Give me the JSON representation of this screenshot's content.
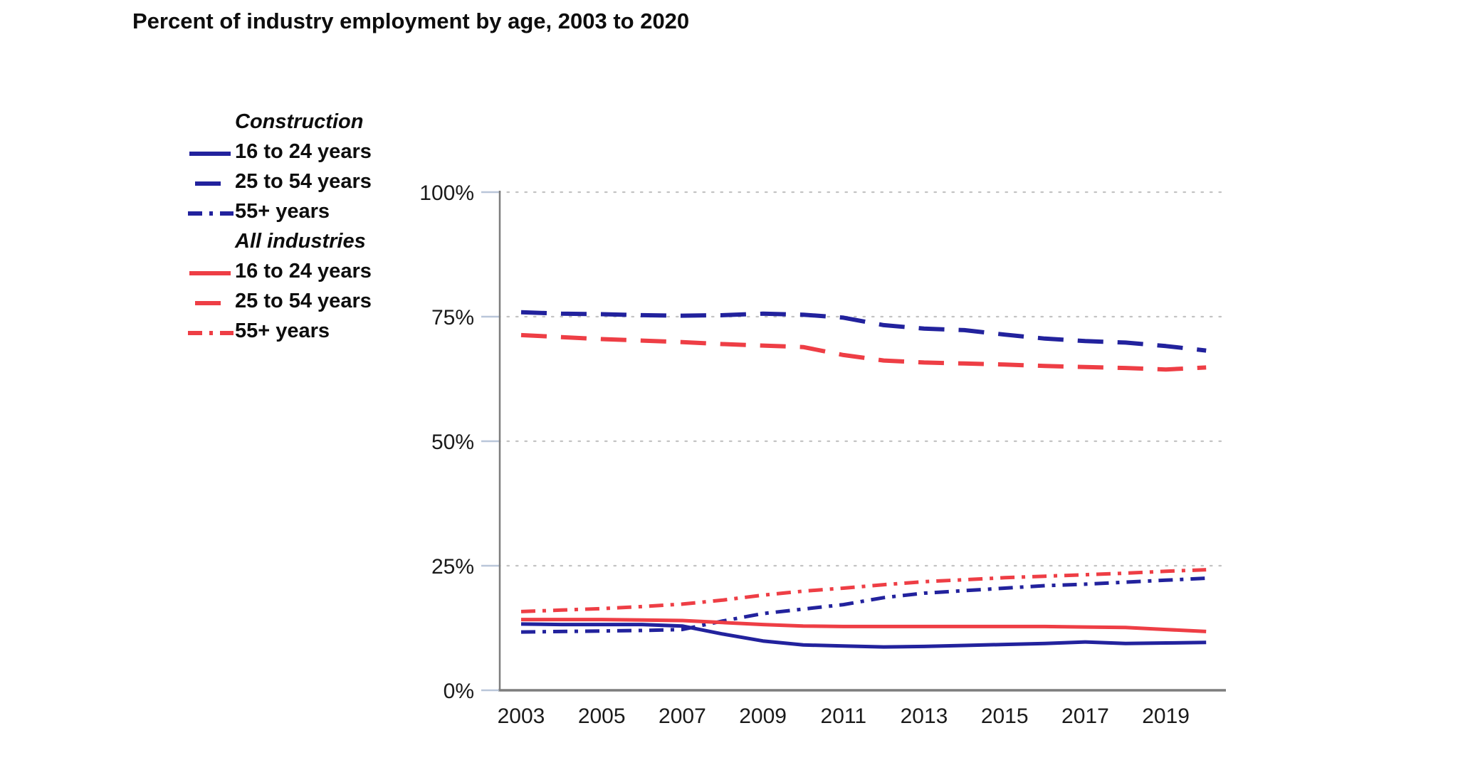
{
  "title": "Percent of industry employment by age, 2003 to 2020",
  "colors": {
    "construction": "#22229d",
    "all_industries": "#ee3e45",
    "grid": "#c3c3c3",
    "axis": "#7d7d7d",
    "tick": "#b9c6d9",
    "text": "#0d0d0d"
  },
  "legend": [
    {
      "type": "header",
      "label": "Construction"
    },
    {
      "type": "item",
      "label": "16 to 24 years",
      "series_index": 0
    },
    {
      "type": "item",
      "label": "25 to 54 years",
      "series_index": 1
    },
    {
      "type": "item",
      "label": "55+ years",
      "series_index": 2
    },
    {
      "type": "header",
      "label": "All industries"
    },
    {
      "type": "item",
      "label": "16 to 24 years",
      "series_index": 3
    },
    {
      "type": "item",
      "label": "25 to 54 years",
      "series_index": 4
    },
    {
      "type": "item",
      "label": "55+ years",
      "series_index": 5
    }
  ],
  "chart_data": {
    "type": "line",
    "title": "Percent of industry employment by age, 2003 to 2020",
    "xlabel": "",
    "ylabel": "",
    "grid": true,
    "legend_position": "left",
    "ylim": [
      0,
      100
    ],
    "y_ticks": [
      0,
      25,
      50,
      75,
      100
    ],
    "y_tick_labels": [
      "0%",
      "25%",
      "50%",
      "75%",
      "100%"
    ],
    "x": [
      2003,
      2004,
      2005,
      2006,
      2007,
      2008,
      2009,
      2010,
      2011,
      2012,
      2013,
      2014,
      2015,
      2016,
      2017,
      2018,
      2019,
      2020
    ],
    "x_tick_labels": [
      "2003",
      "2005",
      "2007",
      "2009",
      "2011",
      "2013",
      "2015",
      "2017",
      "2019"
    ],
    "series": [
      {
        "name": "Construction 16 to 24 years",
        "color_key": "construction",
        "dash": "solid",
        "values": [
          13.3,
          13.2,
          13.2,
          13.2,
          12.9,
          11.3,
          9.9,
          9.1,
          8.9,
          8.7,
          8.8,
          9.0,
          9.2,
          9.4,
          9.7,
          9.4,
          9.5,
          9.6
        ]
      },
      {
        "name": "Construction 25 to 54 years",
        "color_key": "construction",
        "dash": "dashed",
        "values": [
          75.9,
          75.6,
          75.5,
          75.3,
          75.2,
          75.3,
          75.6,
          75.4,
          74.8,
          73.3,
          72.6,
          72.3,
          71.4,
          70.6,
          70.1,
          69.8,
          69.1,
          68.2
        ]
      },
      {
        "name": "Construction 55+ years",
        "color_key": "construction",
        "dash": "dashdot",
        "values": [
          11.7,
          11.8,
          11.9,
          12.0,
          12.2,
          13.9,
          15.4,
          16.3,
          17.2,
          18.6,
          19.5,
          20.0,
          20.5,
          21.0,
          21.3,
          21.7,
          22.1,
          22.5
        ]
      },
      {
        "name": "All industries 16 to 24 years",
        "color_key": "all_industries",
        "dash": "solid",
        "values": [
          14.2,
          14.2,
          14.2,
          14.1,
          14.0,
          13.6,
          13.2,
          12.9,
          12.8,
          12.8,
          12.8,
          12.8,
          12.8,
          12.8,
          12.7,
          12.6,
          12.2,
          11.8
        ]
      },
      {
        "name": "All industries 25 to 54 years",
        "color_key": "all_industries",
        "dash": "dashed",
        "values": [
          71.3,
          70.9,
          70.5,
          70.2,
          69.9,
          69.5,
          69.2,
          68.9,
          67.3,
          66.2,
          65.8,
          65.6,
          65.4,
          65.1,
          64.9,
          64.7,
          64.4,
          64.8
        ]
      },
      {
        "name": "All industries 55+ years",
        "color_key": "all_industries",
        "dash": "dashdot",
        "values": [
          15.8,
          16.1,
          16.4,
          16.8,
          17.3,
          18.1,
          19.1,
          19.9,
          20.5,
          21.2,
          21.8,
          22.2,
          22.6,
          22.9,
          23.2,
          23.5,
          23.9,
          24.2
        ]
      }
    ]
  }
}
